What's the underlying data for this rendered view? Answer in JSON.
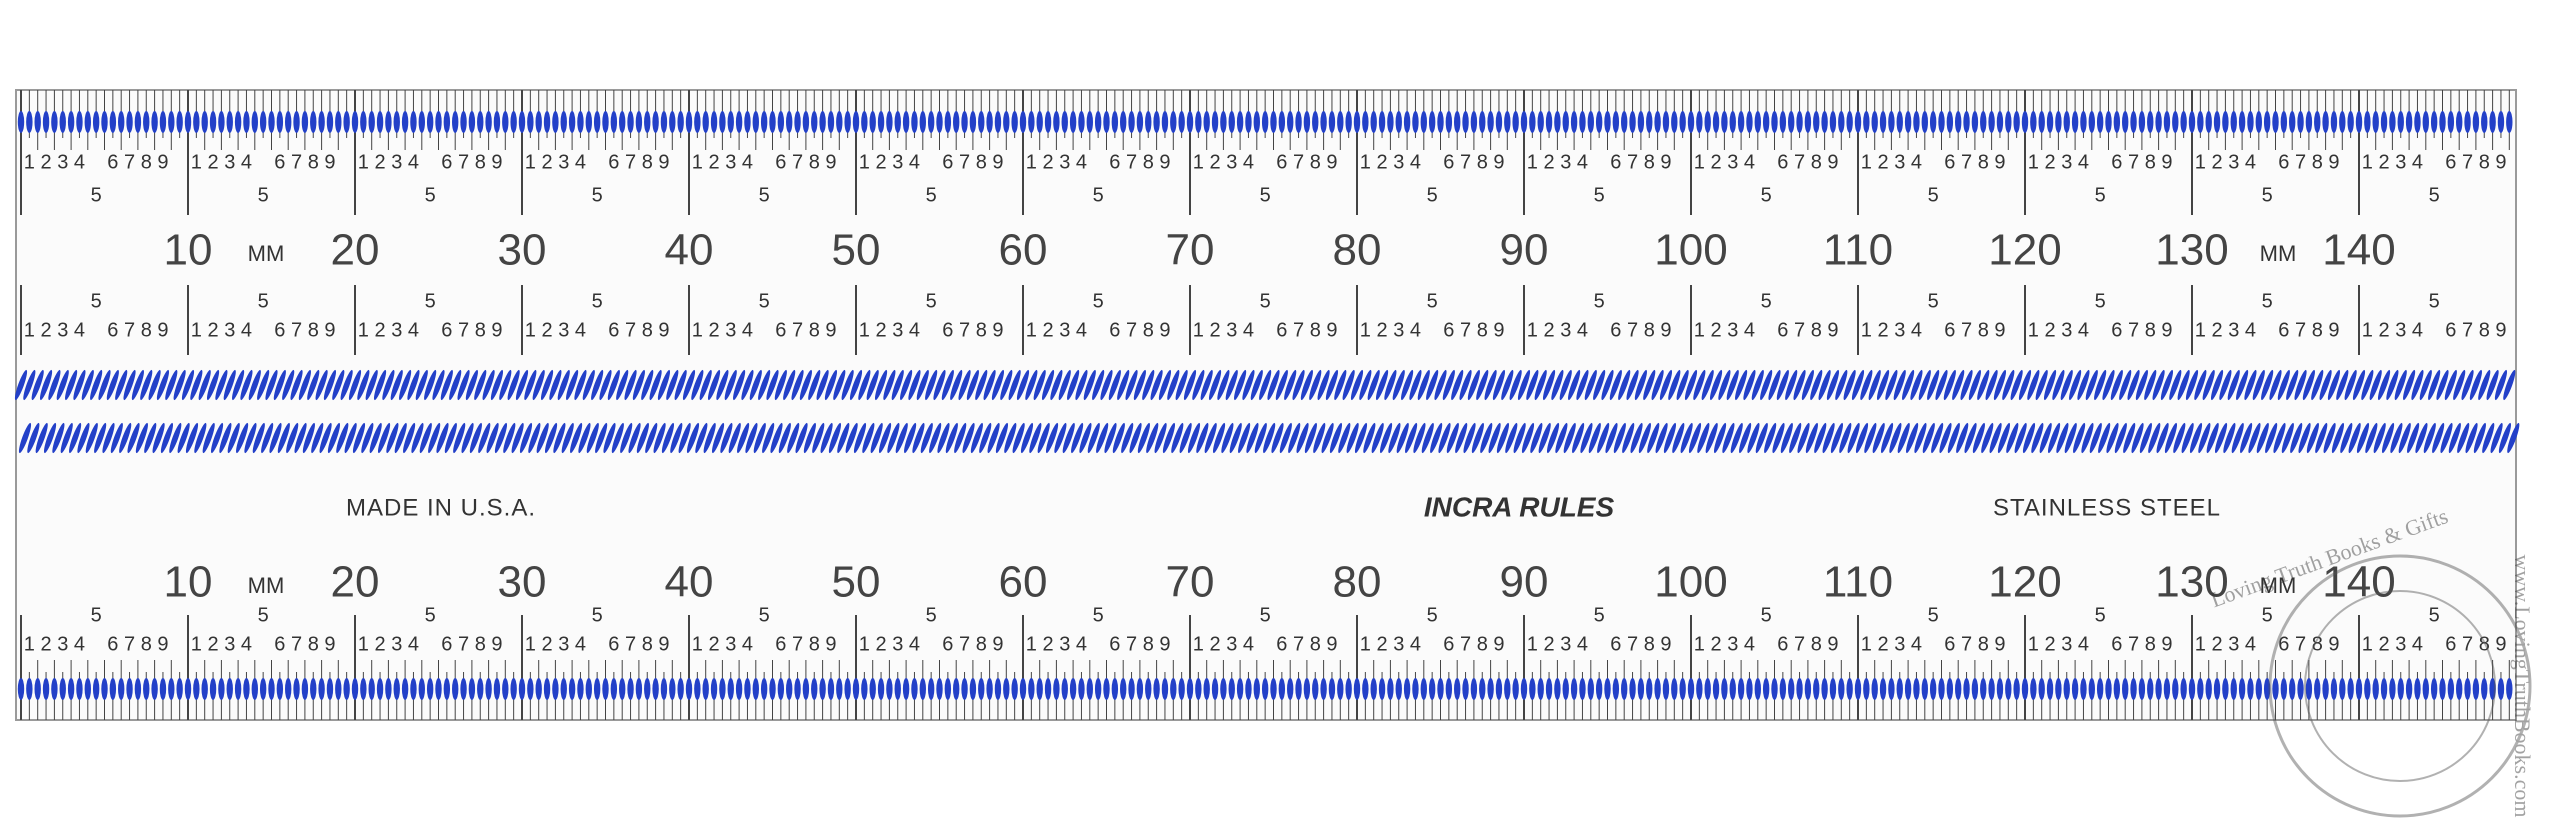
{
  "ruler": {
    "scale_numbers": [
      10,
      20,
      30,
      40,
      50,
      60,
      70,
      80,
      90,
      100,
      110,
      120,
      130,
      140
    ],
    "unit": "MM",
    "subdivision_digits": [
      "1",
      "2",
      "3",
      "4",
      "5",
      "6",
      "7",
      "8",
      "9"
    ]
  },
  "imprint": {
    "origin": "MADE IN U.S.A.",
    "brand": "INCRA RULES",
    "material": "STAINLESS STEEL"
  },
  "watermark": {
    "name": "Loving Truth Books & Gifts",
    "url": "www.LovingTruthBooks.com"
  }
}
